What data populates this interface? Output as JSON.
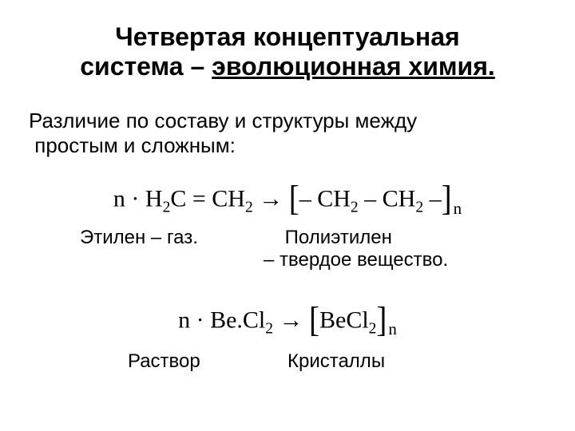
{
  "title_line1": "Четвертая концептуальная",
  "title_line2_plain": "система – ",
  "title_line2_under": "эволюционная химия.",
  "intro_line1": "Различие по составу и структуры между",
  "intro_line2": "простым и сложным:",
  "eq1": {
    "lhs_n": "n",
    "lhs_dot": " · ",
    "lhs_h": "H",
    "lhs_h_sub": "2",
    "lhs_c_eq": "C = CH",
    "lhs_c_sub": "2",
    "arrow": " → ",
    "br_open": "[",
    "seg1": "– CH",
    "seg1_sub": "2",
    "seg_mid": " – CH",
    "seg2_sub": "2",
    "seg_tail": " –",
    "br_close": "]",
    "outer_sub": "n"
  },
  "label1_left": "Этилен – газ.",
  "label1_right_line1": "Полиэтилен",
  "label1_right_line2": "– твердое вещество.",
  "eq2": {
    "lhs_n": "n",
    "lhs_dot": " · ",
    "be": "Be.Cl",
    "be_sub": "2",
    "arrow": " → ",
    "br_open": "[",
    "prod": "BeCl",
    "prod_sub": "2",
    "br_close": "]",
    "outer_sub": "n"
  },
  "label2_left": "Раствор",
  "label2_right": "Кристаллы"
}
